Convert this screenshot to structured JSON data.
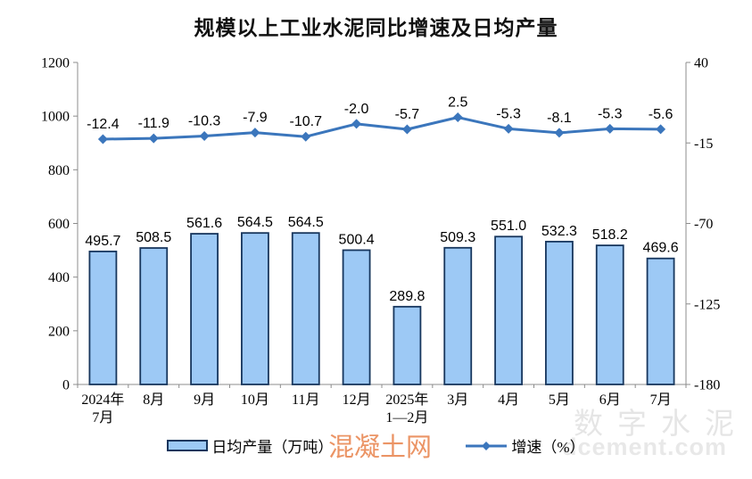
{
  "title": "规模以上工业水泥同比增速及日均产量",
  "legend": {
    "bar_label": "日均产量（万吨）",
    "line_label": "增速（%）"
  },
  "watermarks": {
    "center": "混凝土网",
    "brand": "数字水泥",
    "domain": "dcement.com"
  },
  "chart_data": {
    "type": "bar+line",
    "title": "规模以上工业水泥同比增速及日均产量",
    "categories": [
      "2024年\n7月",
      "8月",
      "9月",
      "10月",
      "11月",
      "12月",
      "2025年\n1—2月",
      "3月",
      "4月",
      "5月",
      "6月",
      "7月"
    ],
    "series": [
      {
        "name": "日均产量（万吨）",
        "type": "bar",
        "axis": "left",
        "values": [
          495.7,
          508.5,
          561.6,
          564.5,
          564.5,
          500.4,
          289.8,
          509.3,
          551.0,
          532.3,
          518.2,
          469.6
        ],
        "value_labels": [
          "495.7",
          "508.5",
          "561.6",
          "564.5",
          "564.5",
          "500.4",
          "289.8",
          "509.3",
          "551.0",
          "532.3",
          "518.2",
          "469.6"
        ]
      },
      {
        "name": "增速（%）",
        "type": "line",
        "axis": "right",
        "values": [
          -12.4,
          -11.9,
          -10.3,
          -7.9,
          -10.7,
          -2.0,
          -5.7,
          2.5,
          -5.3,
          -8.1,
          -5.3,
          -5.6
        ],
        "value_labels": [
          "-12.4",
          "-11.9",
          "-10.3",
          "-7.9",
          "-10.7",
          "-2.0",
          "-5.7",
          "2.5",
          "-5.3",
          "-8.1",
          "-5.3",
          "-5.6"
        ]
      }
    ],
    "left_axis": {
      "min": 0,
      "max": 1200,
      "ticks": [
        1200,
        1000,
        800,
        600,
        400,
        200,
        0
      ]
    },
    "right_axis": {
      "min": -180,
      "max": 40,
      "ticks": [
        40,
        -15,
        -70,
        -125,
        -180
      ]
    },
    "grid": false,
    "legend_position": "bottom",
    "colors": {
      "bar_fill": "#9DC9F5",
      "bar_border": "#17365D",
      "line": "#3B76BC",
      "axis": "#8C8C8C",
      "text": "#000000"
    }
  }
}
